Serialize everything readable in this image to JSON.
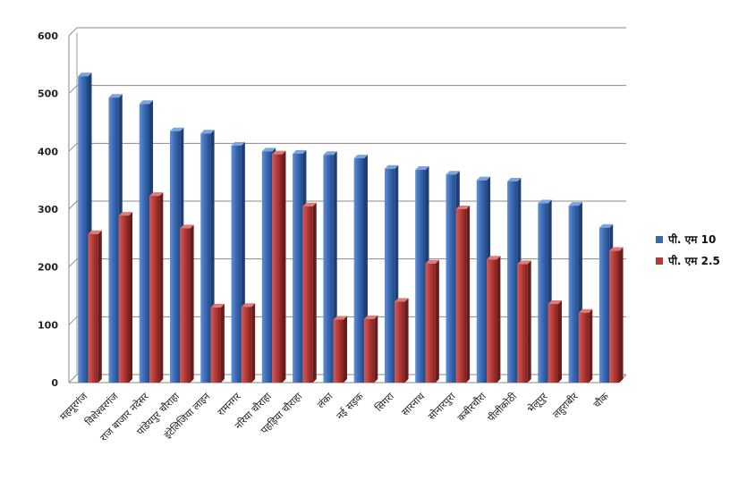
{
  "chart_data": {
    "type": "bar",
    "title": "",
    "xlabel": "",
    "ylabel": "",
    "ylim": [
      0,
      600
    ],
    "yticks": [
      0,
      100,
      200,
      300,
      400,
      500,
      600
    ],
    "grid": true,
    "legend_position": "right",
    "categories": [
      "महमूरगंज",
      "विशेश्वरगंज",
      "राज बाजार नदेसर",
      "पांडेयपुर चौराहा",
      "इंटेलिजिया लाइन",
      "रामनगर",
      "नरिया चौराहा",
      "पहड़िया चौराहा",
      "लंका",
      "नई सड़क",
      "सिगरा",
      "सारनाथ",
      "सोनारपुरा",
      "कबीरचौरा",
      "पीलीकोठी",
      "भेलूपुर",
      "लहुराबीर",
      "चौक"
    ],
    "series": [
      {
        "name": "पी. एम 10",
        "color": "#3a68b0",
        "values": [
          530,
          493,
          482,
          435,
          431,
          410,
          400,
          396,
          394,
          388,
          370,
          368,
          360,
          350,
          348,
          310,
          306,
          268
        ]
      },
      {
        "name": "पी. एम 2.5",
        "color": "#b23a36",
        "values": [
          257,
          289,
          323,
          267,
          130,
          131,
          395,
          305,
          109,
          110,
          140,
          206,
          300,
          213,
          205,
          136,
          121,
          228
        ]
      }
    ]
  }
}
